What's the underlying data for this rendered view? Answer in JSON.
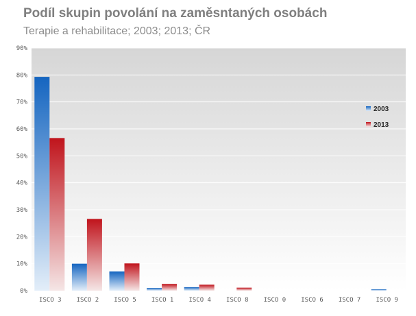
{
  "chart_data": {
    "type": "bar",
    "title": "Podíl skupin povolání na zaměsntaných osobách",
    "subtitle": "Terapie a rehabilitace; 2003; 2013; ČR",
    "categories": [
      "ISCO 3",
      "ISCO 2",
      "ISCO 5",
      "ISCO 1",
      "ISCO 4",
      "ISCO 8",
      "ISCO 0",
      "ISCO 6",
      "ISCO 7",
      "ISCO 9"
    ],
    "series": [
      {
        "name": "2003",
        "values": [
          79.3,
          10.0,
          7.1,
          1.0,
          1.3,
          0.0,
          0.0,
          0.0,
          0.0,
          0.5
        ]
      },
      {
        "name": "2013",
        "values": [
          56.6,
          26.6,
          10.1,
          2.5,
          2.2,
          1.1,
          0.0,
          0.0,
          0.0,
          0.0
        ]
      }
    ],
    "ylim": [
      0,
      90
    ],
    "yticks": [
      "0%",
      "10%",
      "20%",
      "30%",
      "40%",
      "50%",
      "60%",
      "70%",
      "80%",
      "90%"
    ],
    "grid": true,
    "legend_position": "right",
    "colors": {
      "2003": "#1f6fc4",
      "2013": "#c0282d"
    }
  }
}
